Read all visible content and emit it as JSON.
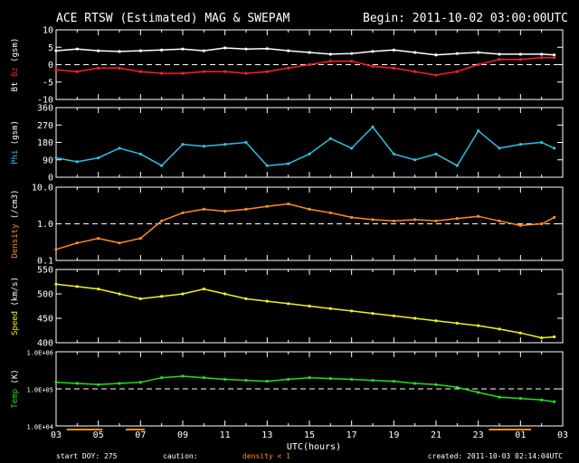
{
  "header": {
    "title": "ACE RTSW (Estimated) MAG & SWEPAM",
    "begin": "Begin: 2011-10-02 03:00:00UTC"
  },
  "footer": {
    "xlabel": "UTC(hours)",
    "start_doy": "start DOY: 275",
    "caution": "caution:",
    "density_note": "density < 1",
    "created": "created: 2011-10-03 02:14:04UTC"
  },
  "colors": {
    "bt": "#ffffff",
    "bz": "#ff2020",
    "phi": "#30c0e0",
    "density": "#ff8c20",
    "speed": "#f0f020",
    "temp": "#20e020",
    "axis": "#ffffff",
    "caution": "#ff8c20"
  },
  "chart_data": {
    "type": "scatter",
    "x_unit": "hours since 2011-10-02 03:00 UTC",
    "xlim": [
      0,
      24
    ],
    "x_tick_labels": [
      "03",
      "05",
      "07",
      "09",
      "11",
      "13",
      "15",
      "17",
      "19",
      "21",
      "23",
      "01",
      "03"
    ],
    "x_tick_values": [
      0,
      2,
      4,
      6,
      8,
      10,
      12,
      14,
      16,
      18,
      20,
      22,
      24
    ],
    "caution_intervals": [
      [
        0.5,
        2.2
      ],
      [
        3.3,
        4.2
      ],
      [
        20.5,
        22.5
      ]
    ],
    "panels": [
      {
        "key": "mag",
        "ylabel_parts": [
          {
            "text": "Bt",
            "color": "#ffffff"
          },
          {
            "text": " Bz",
            "color": "#ff2020"
          },
          {
            "text": " (gsm)",
            "color": "#ffffff"
          }
        ],
        "ylim": [
          -10,
          10
        ],
        "log": false,
        "y_ticks": [
          -10,
          -5,
          0,
          5,
          10
        ],
        "y_tick_labels": [
          "-10",
          "-5",
          "0",
          "5",
          "10"
        ],
        "dashed_ref": 0,
        "series": [
          {
            "name": "Bt",
            "color": "#ffffff",
            "x": [
              0,
              1,
              2,
              3,
              4,
              5,
              6,
              7,
              8,
              9,
              10,
              11,
              12,
              13,
              14,
              15,
              16,
              17,
              18,
              19,
              20,
              21,
              22,
              23,
              23.6
            ],
            "y": [
              4,
              4.5,
              4,
              3.8,
              4,
              4.2,
              4.5,
              4,
              4.8,
              4.5,
              4.6,
              4,
              3.5,
              3,
              3.2,
              3.8,
              4.2,
              3.5,
              2.8,
              3.2,
              3.5,
              3,
              3,
              3,
              2.8
            ]
          },
          {
            "name": "Bz",
            "color": "#ff2020",
            "x": [
              0,
              1,
              2,
              3,
              4,
              5,
              6,
              7,
              8,
              9,
              10,
              11,
              12,
              13,
              14,
              15,
              16,
              17,
              18,
              19,
              20,
              21,
              22,
              23,
              23.6
            ],
            "y": [
              -1.5,
              -2,
              -1,
              -1,
              -2,
              -2.5,
              -2.5,
              -2,
              -2,
              -2.5,
              -2,
              -1,
              0,
              1,
              1,
              -0.5,
              -1,
              -2,
              -3,
              -2,
              0,
              1.5,
              1.5,
              2,
              2
            ]
          }
        ]
      },
      {
        "key": "phi",
        "ylabel_parts": [
          {
            "text": "Phi",
            "color": "#30c0e0"
          },
          {
            "text": " (gsm)",
            "color": "#ffffff"
          }
        ],
        "ylim": [
          0,
          360
        ],
        "log": false,
        "y_ticks": [
          0,
          90,
          180,
          270,
          360
        ],
        "y_tick_labels": [
          "0",
          "90",
          "180",
          "270",
          "360"
        ],
        "series": [
          {
            "name": "Phi",
            "color": "#30c0e0",
            "x": [
              0,
              1,
              2,
              3,
              4,
              5,
              6,
              7,
              8,
              9,
              10,
              11,
              12,
              13,
              14,
              15,
              16,
              17,
              18,
              19,
              20,
              21,
              22,
              23,
              23.6
            ],
            "y": [
              100,
              80,
              100,
              150,
              120,
              60,
              170,
              160,
              170,
              180,
              60,
              70,
              120,
              200,
              150,
              260,
              120,
              90,
              120,
              60,
              240,
              150,
              170,
              180,
              150
            ]
          }
        ]
      },
      {
        "key": "density",
        "ylabel_parts": [
          {
            "text": "Density",
            "color": "#ff8c20"
          },
          {
            "text": " (/cm3)",
            "color": "#ffffff"
          }
        ],
        "ylim": [
          0.1,
          10
        ],
        "log": true,
        "y_ticks": [
          0.1,
          1,
          10
        ],
        "y_tick_labels": [
          "0.1",
          "1.0",
          "10.0"
        ],
        "dashed_ref": 1,
        "series": [
          {
            "name": "Density",
            "color": "#ff8c20",
            "x": [
              0,
              1,
              2,
              3,
              4,
              5,
              6,
              7,
              8,
              9,
              10,
              11,
              12,
              13,
              14,
              15,
              16,
              17,
              18,
              19,
              20,
              21,
              22,
              23,
              23.6
            ],
            "y": [
              0.2,
              0.3,
              0.4,
              0.3,
              0.4,
              1.2,
              2,
              2.5,
              2.2,
              2.5,
              3,
              3.5,
              2.5,
              2,
              1.5,
              1.3,
              1.2,
              1.3,
              1.2,
              1.4,
              1.6,
              1.2,
              0.9,
              1,
              1.5
            ]
          }
        ]
      },
      {
        "key": "speed",
        "ylabel_parts": [
          {
            "text": "Speed",
            "color": "#f0f020"
          },
          {
            "text": " (km/s)",
            "color": "#ffffff"
          }
        ],
        "ylim": [
          400,
          550
        ],
        "log": false,
        "y_ticks": [
          400,
          450,
          500,
          550
        ],
        "y_tick_labels": [
          "400",
          "450",
          "500",
          "550"
        ],
        "series": [
          {
            "name": "Speed",
            "color": "#f0f020",
            "x": [
              0,
              1,
              2,
              3,
              4,
              5,
              6,
              7,
              8,
              9,
              10,
              11,
              12,
              13,
              14,
              15,
              16,
              17,
              18,
              19,
              20,
              21,
              22,
              23,
              23.6
            ],
            "y": [
              520,
              515,
              510,
              500,
              490,
              495,
              500,
              510,
              500,
              490,
              485,
              480,
              475,
              470,
              465,
              460,
              455,
              450,
              445,
              440,
              435,
              428,
              420,
              410,
              412
            ]
          }
        ]
      },
      {
        "key": "temp",
        "ylabel_parts": [
          {
            "text": "Temp",
            "color": "#20e020"
          },
          {
            "text": " (K)",
            "color": "#ffffff"
          }
        ],
        "ylim": [
          10000,
          1000000
        ],
        "log": true,
        "y_ticks": [
          10000,
          100000,
          1000000
        ],
        "y_tick_labels": [
          "1.0E+04",
          "1.0E+05",
          "1.0E+06"
        ],
        "dashed_ref": 100000,
        "series": [
          {
            "name": "Temp",
            "color": "#20e020",
            "x": [
              0,
              1,
              2,
              3,
              4,
              5,
              6,
              7,
              8,
              9,
              10,
              11,
              12,
              13,
              14,
              15,
              16,
              17,
              18,
              19,
              20,
              21,
              22,
              23,
              23.6
            ],
            "y": [
              150000,
              140000,
              130000,
              140000,
              150000,
              200000,
              220000,
              200000,
              180000,
              170000,
              160000,
              180000,
              200000,
              190000,
              180000,
              170000,
              160000,
              140000,
              130000,
              110000,
              80000,
              60000,
              55000,
              50000,
              45000
            ]
          }
        ]
      }
    ]
  }
}
